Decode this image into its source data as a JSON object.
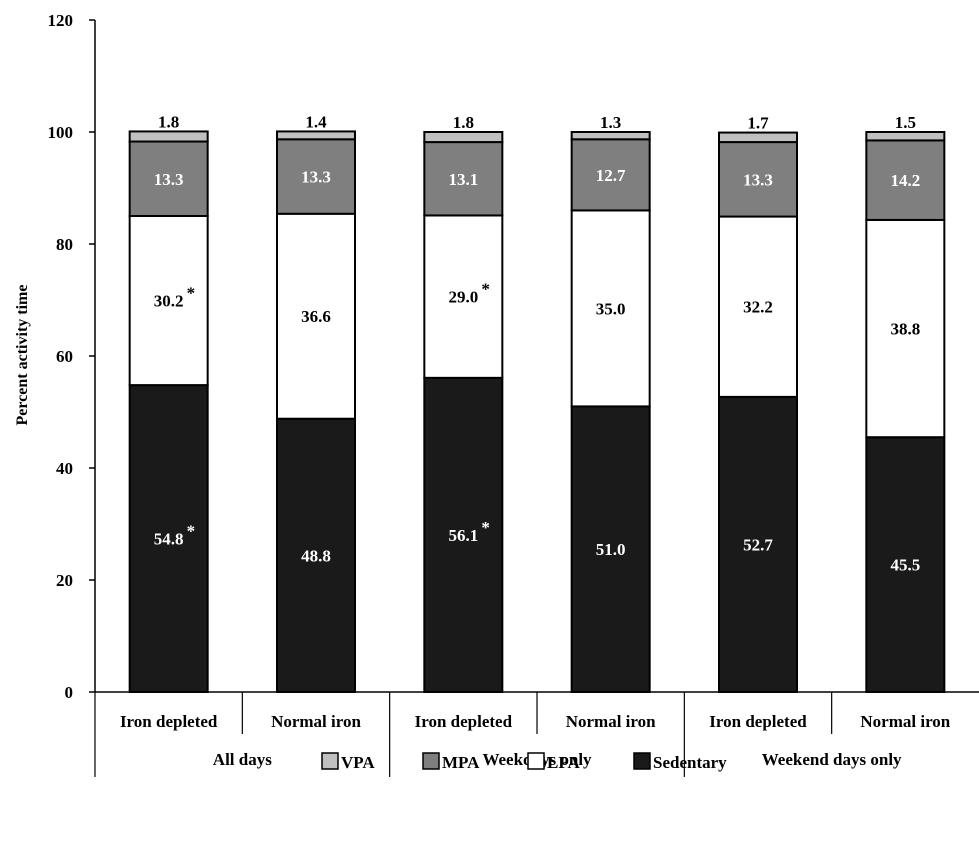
{
  "chart_data": {
    "type": "bar",
    "stacked": true,
    "ylabel": "Percent activity time",
    "ylim": [
      0,
      120
    ],
    "yticks": [
      "0",
      "20",
      "40",
      "60",
      "80",
      "100",
      "120"
    ],
    "categories": [
      "Iron depleted",
      "Normal iron",
      "Iron depleted",
      "Normal iron",
      "Iron depleted",
      "Normal iron"
    ],
    "groups": [
      "All days",
      "Weekdays only",
      "Weekend days only"
    ],
    "series": [
      {
        "name": "Sedentary",
        "color": "#1a1a1a",
        "text_color": "#ffffff",
        "values": [
          54.8,
          48.8,
          56.1,
          51.0,
          52.7,
          45.5
        ],
        "labels": [
          "54.8",
          "48.8",
          "56.1",
          "51.0",
          "52.7",
          "45.5"
        ],
        "significant": [
          true,
          false,
          true,
          false,
          false,
          false
        ]
      },
      {
        "name": "LPA",
        "color": "#ffffff",
        "text_color": "#000000",
        "values": [
          30.2,
          36.6,
          29.0,
          35.0,
          32.2,
          38.8
        ],
        "labels": [
          "30.2",
          "36.6",
          "29.0",
          "35.0",
          "32.2",
          "38.8"
        ],
        "significant": [
          true,
          false,
          true,
          false,
          false,
          false
        ]
      },
      {
        "name": "MPA",
        "color": "#7f7f7f",
        "text_color": "#ffffff",
        "values": [
          13.3,
          13.3,
          13.1,
          12.7,
          13.3,
          14.2
        ],
        "labels": [
          "13.3",
          "13.3",
          "13.1",
          "12.7",
          "13.3",
          "14.2"
        ],
        "significant": [
          false,
          false,
          false,
          false,
          false,
          false
        ]
      },
      {
        "name": "VPA",
        "color": "#c0c0c0",
        "text_color": "#000000",
        "values": [
          1.8,
          1.4,
          1.8,
          1.3,
          1.7,
          1.5
        ],
        "labels": [
          "1.8",
          "1.4",
          "1.8",
          "1.3",
          "1.7",
          "1.5"
        ],
        "significant": [
          false,
          false,
          false,
          false,
          false,
          false
        ]
      }
    ],
    "significance_marker": "*",
    "legend": {
      "position": "bottom",
      "order": [
        "VPA",
        "MPA",
        "LPA",
        "Sedentary"
      ]
    }
  }
}
